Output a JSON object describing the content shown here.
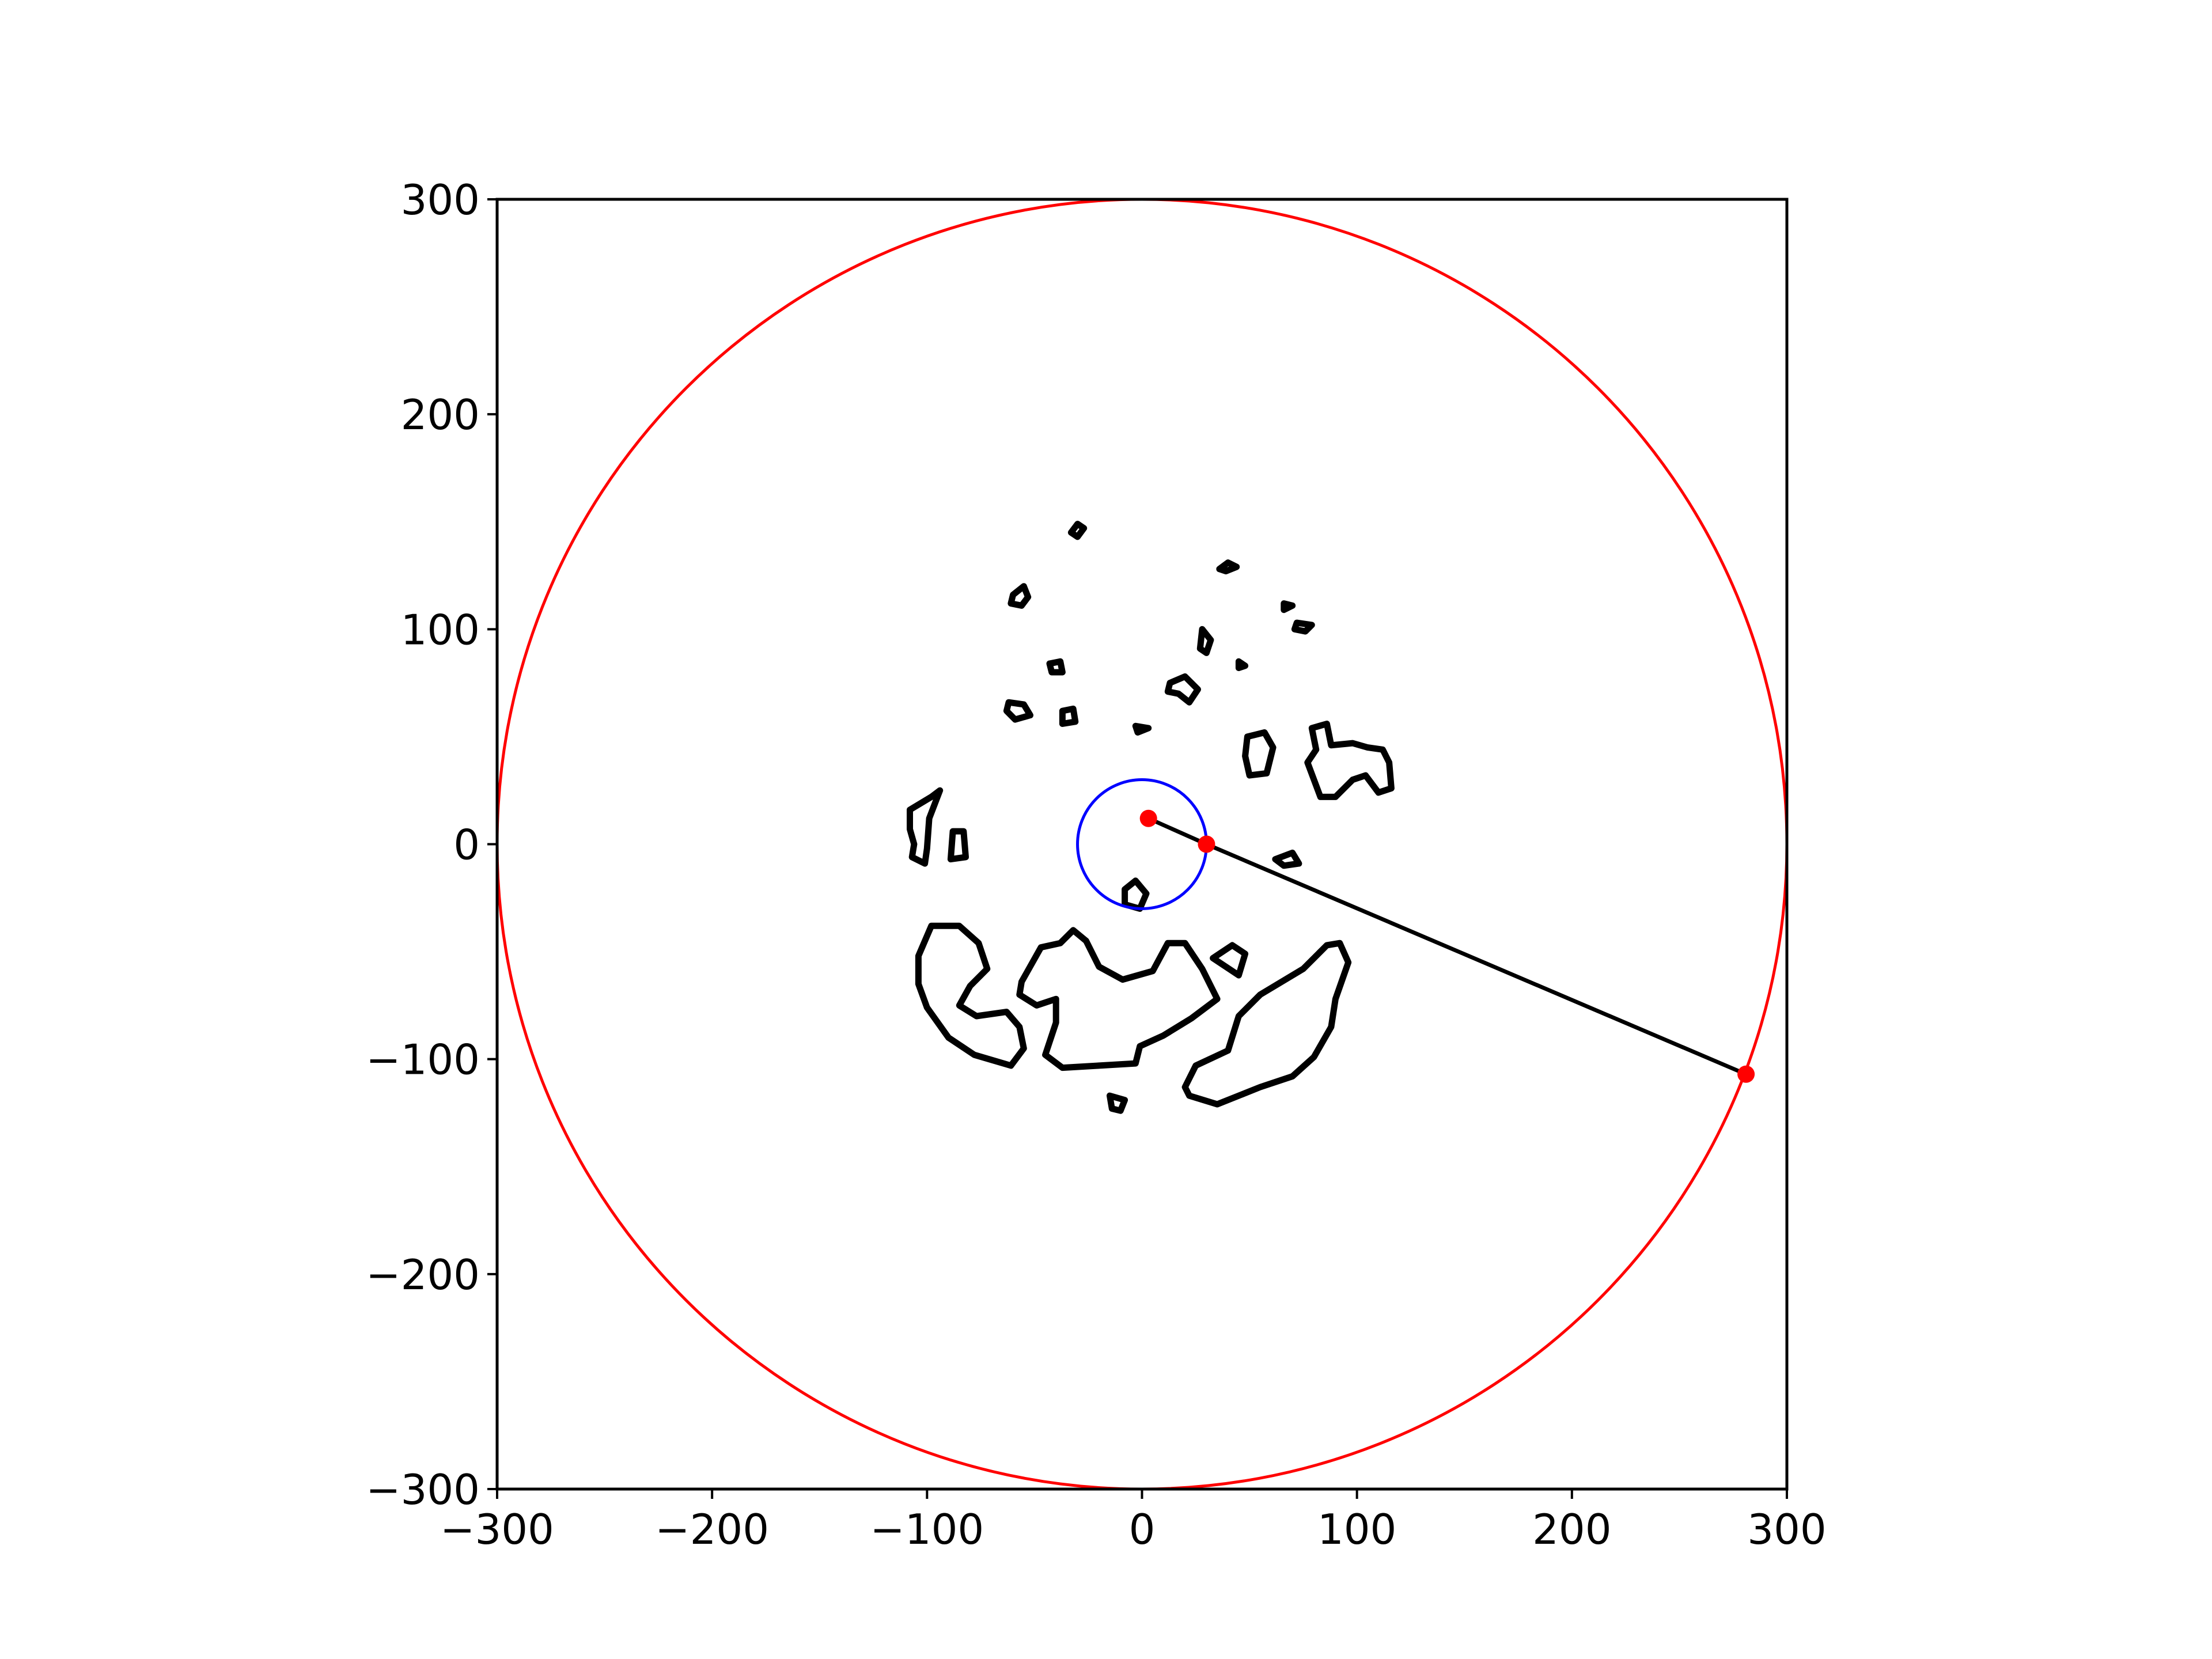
{
  "chart_data": {
    "type": "scatter",
    "title": "",
    "xlabel": "",
    "ylabel": "",
    "xlim": [
      -300,
      300
    ],
    "ylim": [
      -300,
      300
    ],
    "aspect": "equal",
    "grid": false,
    "legend": "none",
    "x_ticks": [
      {
        "value": -300,
        "label": "−300"
      },
      {
        "value": -200,
        "label": "−200"
      },
      {
        "value": -100,
        "label": "−100"
      },
      {
        "value": 0,
        "label": "0"
      },
      {
        "value": 100,
        "label": "100"
      },
      {
        "value": 200,
        "label": "200"
      },
      {
        "value": 300,
        "label": "300"
      }
    ],
    "y_ticks": [
      {
        "value": -300,
        "label": "−300"
      },
      {
        "value": -200,
        "label": "−200"
      },
      {
        "value": -100,
        "label": "−100"
      },
      {
        "value": 0,
        "label": "0"
      },
      {
        "value": 100,
        "label": "100"
      },
      {
        "value": 200,
        "label": "200"
      },
      {
        "value": 300,
        "label": "300"
      }
    ],
    "circles": [
      {
        "cx": 0,
        "cy": 0,
        "r": 300,
        "color": "#ff0000"
      },
      {
        "cx": 0,
        "cy": 0,
        "r": 30,
        "color": "#0000ff"
      }
    ],
    "line": {
      "points": [
        [
          3,
          12
        ],
        [
          30,
          0
        ],
        [
          281,
          -107
        ]
      ],
      "color": "#000000"
    },
    "points": [
      {
        "x": 3,
        "y": 12,
        "color": "#ff0000"
      },
      {
        "x": 30,
        "y": 0,
        "color": "#ff0000"
      },
      {
        "x": 281,
        "y": -107,
        "color": "#ff0000"
      }
    ],
    "obstacles": [
      [
        [
          -33,
          145
        ],
        [
          -30,
          149
        ],
        [
          -27,
          147
        ],
        [
          -30,
          143
        ]
      ],
      [
        [
          -60,
          116
        ],
        [
          -55,
          120
        ],
        [
          -53,
          115
        ],
        [
          -56,
          111
        ],
        [
          -61,
          112
        ]
      ],
      [
        [
          36,
          128
        ],
        [
          40,
          131
        ],
        [
          44,
          129
        ],
        [
          39,
          127
        ]
      ],
      [
        [
          66,
          112
        ],
        [
          70,
          111
        ],
        [
          66,
          109
        ]
      ],
      [
        [
          72,
          103
        ],
        [
          79,
          102
        ],
        [
          76,
          99
        ],
        [
          71,
          100
        ]
      ],
      [
        [
          -43,
          84
        ],
        [
          -38,
          85
        ],
        [
          -37,
          80
        ],
        [
          -42,
          80
        ]
      ],
      [
        [
          28,
          100
        ],
        [
          32,
          95
        ],
        [
          30,
          89
        ],
        [
          27,
          91
        ]
      ],
      [
        [
          45,
          85
        ],
        [
          48,
          83
        ],
        [
          45,
          82
        ]
      ],
      [
        [
          13,
          75
        ],
        [
          20,
          78
        ],
        [
          26,
          72
        ],
        [
          22,
          66
        ],
        [
          17,
          70
        ],
        [
          12,
          71
        ]
      ],
      [
        [
          -62,
          66
        ],
        [
          -55,
          65
        ],
        [
          -52,
          60
        ],
        [
          -59,
          58
        ],
        [
          -63,
          62
        ]
      ],
      [
        [
          -37,
          62
        ],
        [
          -32,
          63
        ],
        [
          -31,
          57
        ],
        [
          -37,
          56
        ]
      ],
      [
        [
          -3,
          55
        ],
        [
          3,
          54
        ],
        [
          -2,
          52
        ]
      ],
      [
        [
          49,
          50
        ],
        [
          57,
          52
        ],
        [
          61,
          45
        ],
        [
          58,
          33
        ],
        [
          50,
          32
        ],
        [
          48,
          41
        ]
      ],
      [
        [
          79,
          54
        ],
        [
          86,
          56
        ],
        [
          88,
          46
        ],
        [
          98,
          47
        ],
        [
          105,
          45
        ],
        [
          112,
          44
        ],
        [
          115,
          38
        ],
        [
          116,
          26
        ],
        [
          110,
          24
        ],
        [
          104,
          32
        ],
        [
          98,
          30
        ],
        [
          90,
          22
        ],
        [
          83,
          22
        ],
        [
          80,
          30
        ],
        [
          77,
          38
        ],
        [
          81,
          44
        ]
      ],
      [
        [
          -108,
          16
        ],
        [
          -98,
          22
        ],
        [
          -94,
          25
        ],
        [
          -99,
          12
        ],
        [
          -100,
          -2
        ],
        [
          -101,
          -9
        ],
        [
          -107,
          -6
        ],
        [
          -106,
          0
        ],
        [
          -108,
          7
        ]
      ],
      [
        [
          -88,
          6
        ],
        [
          -83,
          6
        ],
        [
          -82,
          -6
        ],
        [
          -89,
          -7
        ]
      ],
      [
        [
          62,
          -7
        ],
        [
          70,
          -4
        ],
        [
          73,
          -9
        ],
        [
          66,
          -10
        ]
      ],
      [
        [
          -8,
          -21
        ],
        [
          -3,
          -17
        ],
        [
          2,
          -23
        ],
        [
          -1,
          -30
        ],
        [
          -8,
          -28
        ]
      ],
      [
        [
          -104,
          -52
        ],
        [
          -98,
          -38
        ],
        [
          -85,
          -38
        ],
        [
          -76,
          -46
        ],
        [
          -72,
          -58
        ],
        [
          -80,
          -66
        ],
        [
          -85,
          -75
        ],
        [
          -77,
          -80
        ],
        [
          -63,
          -78
        ],
        [
          -57,
          -85
        ],
        [
          -55,
          -95
        ],
        [
          -61,
          -103
        ],
        [
          -78,
          -98
        ],
        [
          -90,
          -90
        ],
        [
          -100,
          -76
        ],
        [
          -104,
          -65
        ]
      ],
      [
        [
          -56,
          -64
        ],
        [
          -47,
          -48
        ],
        [
          -38,
          -46
        ],
        [
          -32,
          -40
        ],
        [
          -26,
          -45
        ],
        [
          -20,
          -57
        ],
        [
          -9,
          -63
        ],
        [
          5,
          -59
        ],
        [
          12,
          -46
        ],
        [
          20,
          -46
        ],
        [
          28,
          -58
        ],
        [
          35,
          -72
        ],
        [
          23,
          -81
        ],
        [
          10,
          -89
        ],
        [
          -1,
          -94
        ],
        [
          -3,
          -102
        ],
        [
          -20,
          -103
        ],
        [
          -37,
          -104
        ],
        [
          -45,
          -98
        ],
        [
          -40,
          -83
        ],
        [
          -40,
          -72
        ],
        [
          -49,
          -75
        ],
        [
          -57,
          -70
        ]
      ],
      [
        [
          33,
          -53
        ],
        [
          42,
          -47
        ],
        [
          48,
          -51
        ],
        [
          45,
          -61
        ]
      ],
      [
        [
          -15,
          -117
        ],
        [
          -8,
          -119
        ],
        [
          -10,
          -124
        ],
        [
          -14,
          -123
        ]
      ],
      [
        [
          22,
          -117
        ],
        [
          35,
          -121
        ],
        [
          55,
          -113
        ],
        [
          70,
          -108
        ],
        [
          80,
          -99
        ],
        [
          88,
          -85
        ],
        [
          90,
          -72
        ],
        [
          96,
          -55
        ],
        [
          92,
          -46
        ],
        [
          86,
          -47
        ],
        [
          75,
          -58
        ],
        [
          55,
          -70
        ],
        [
          45,
          -80
        ],
        [
          40,
          -96
        ],
        [
          25,
          -103
        ],
        [
          20,
          -113
        ]
      ]
    ]
  }
}
